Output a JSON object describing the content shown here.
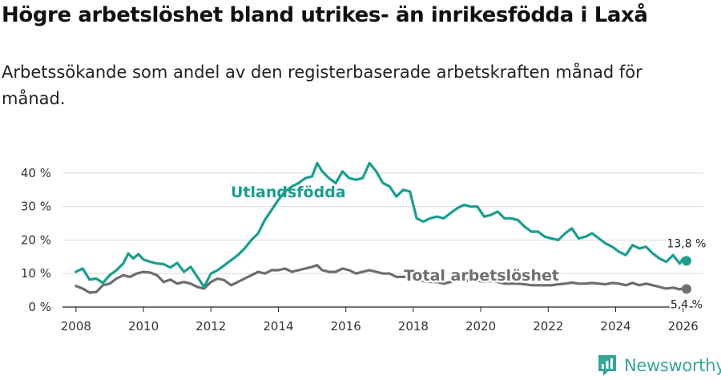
{
  "chart_data": {
    "type": "line",
    "title": "Högre arbetslöshet bland utrikes- än inrikesfödda i Laxå",
    "subtitle": "Arbetssökande som andel av den registerbaserade arbetskraften månad för månad.",
    "xlabel": "",
    "ylabel": "",
    "xlim": [
      2007.6,
      2026.6
    ],
    "ylim": [
      0,
      45
    ],
    "x_ticks": [
      2008,
      2010,
      2012,
      2014,
      2016,
      2018,
      2020,
      2022,
      2024,
      2026
    ],
    "y_ticks": [
      0,
      10,
      20,
      30,
      40
    ],
    "y_tick_labels": [
      "0 %",
      "10 %",
      "20 %",
      "30 %",
      "40 %"
    ],
    "grid": true,
    "series": [
      {
        "name": "Utlandsfödda",
        "color": "#1a9e8f",
        "end_label": "13,8 %",
        "points": [
          [
            2008.0,
            10.5
          ],
          [
            2008.2,
            11.5
          ],
          [
            2008.4,
            8.2
          ],
          [
            2008.6,
            8.5
          ],
          [
            2008.8,
            7.2
          ],
          [
            2009.0,
            9.5
          ],
          [
            2009.2,
            11.0
          ],
          [
            2009.4,
            13.0
          ],
          [
            2009.55,
            16.0
          ],
          [
            2009.7,
            14.5
          ],
          [
            2009.85,
            15.8
          ],
          [
            2010.0,
            14.2
          ],
          [
            2010.2,
            13.5
          ],
          [
            2010.4,
            13.0
          ],
          [
            2010.6,
            12.8
          ],
          [
            2010.8,
            11.8
          ],
          [
            2011.0,
            13.2
          ],
          [
            2011.2,
            10.5
          ],
          [
            2011.4,
            12.0
          ],
          [
            2011.6,
            9.0
          ],
          [
            2011.8,
            6.0
          ],
          [
            2012.0,
            10.0
          ],
          [
            2012.2,
            11.0
          ],
          [
            2012.4,
            12.5
          ],
          [
            2012.6,
            14.0
          ],
          [
            2012.8,
            15.5
          ],
          [
            2013.0,
            17.5
          ],
          [
            2013.2,
            20.0
          ],
          [
            2013.4,
            22.0
          ],
          [
            2013.6,
            26.0
          ],
          [
            2013.8,
            29.0
          ],
          [
            2014.0,
            32.0
          ],
          [
            2014.2,
            34.5
          ],
          [
            2014.4,
            36.0
          ],
          [
            2014.6,
            37.0
          ],
          [
            2014.8,
            38.5
          ],
          [
            2015.0,
            39.0
          ],
          [
            2015.15,
            43.0
          ],
          [
            2015.3,
            40.5
          ],
          [
            2015.5,
            38.5
          ],
          [
            2015.7,
            37.0
          ],
          [
            2015.9,
            40.5
          ],
          [
            2016.1,
            38.5
          ],
          [
            2016.3,
            38.0
          ],
          [
            2016.5,
            38.5
          ],
          [
            2016.7,
            43.0
          ],
          [
            2016.9,
            40.5
          ],
          [
            2017.1,
            37.0
          ],
          [
            2017.3,
            36.0
          ],
          [
            2017.5,
            33.0
          ],
          [
            2017.7,
            35.0
          ],
          [
            2017.9,
            34.5
          ],
          [
            2018.1,
            26.5
          ],
          [
            2018.3,
            25.5
          ],
          [
            2018.5,
            26.5
          ],
          [
            2018.7,
            27.0
          ],
          [
            2018.9,
            26.5
          ],
          [
            2019.1,
            28.0
          ],
          [
            2019.3,
            29.5
          ],
          [
            2019.5,
            30.5
          ],
          [
            2019.7,
            30.0
          ],
          [
            2019.9,
            30.0
          ],
          [
            2020.1,
            27.0
          ],
          [
            2020.3,
            27.5
          ],
          [
            2020.5,
            28.5
          ],
          [
            2020.7,
            26.5
          ],
          [
            2020.9,
            26.5
          ],
          [
            2021.1,
            26.0
          ],
          [
            2021.3,
            24.0
          ],
          [
            2021.5,
            22.5
          ],
          [
            2021.7,
            22.5
          ],
          [
            2021.9,
            21.0
          ],
          [
            2022.1,
            20.5
          ],
          [
            2022.3,
            20.0
          ],
          [
            2022.5,
            22.0
          ],
          [
            2022.7,
            23.5
          ],
          [
            2022.9,
            20.5
          ],
          [
            2023.1,
            21.0
          ],
          [
            2023.3,
            22.0
          ],
          [
            2023.5,
            20.5
          ],
          [
            2023.7,
            19.0
          ],
          [
            2023.9,
            18.0
          ],
          [
            2024.1,
            16.5
          ],
          [
            2024.3,
            15.5
          ],
          [
            2024.5,
            18.5
          ],
          [
            2024.7,
            17.5
          ],
          [
            2024.9,
            18.0
          ],
          [
            2025.1,
            16.0
          ],
          [
            2025.3,
            14.5
          ],
          [
            2025.5,
            13.5
          ],
          [
            2025.7,
            15.5
          ],
          [
            2025.9,
            13.0
          ],
          [
            2026.0,
            14.5
          ],
          [
            2026.1,
            13.8
          ]
        ]
      },
      {
        "name": "Total arbetslöshet",
        "color": "#6e6e70",
        "end_label": "5,4 %",
        "points": [
          [
            2008.0,
            6.3
          ],
          [
            2008.2,
            5.5
          ],
          [
            2008.4,
            4.3
          ],
          [
            2008.6,
            4.5
          ],
          [
            2008.8,
            6.5
          ],
          [
            2009.0,
            7.0
          ],
          [
            2009.2,
            8.5
          ],
          [
            2009.4,
            9.5
          ],
          [
            2009.6,
            9.0
          ],
          [
            2009.8,
            10.0
          ],
          [
            2010.0,
            10.5
          ],
          [
            2010.2,
            10.3
          ],
          [
            2010.4,
            9.5
          ],
          [
            2010.6,
            7.5
          ],
          [
            2010.8,
            8.2
          ],
          [
            2011.0,
            7.0
          ],
          [
            2011.2,
            7.5
          ],
          [
            2011.4,
            7.0
          ],
          [
            2011.6,
            6.0
          ],
          [
            2011.8,
            5.5
          ],
          [
            2012.0,
            7.5
          ],
          [
            2012.2,
            8.5
          ],
          [
            2012.4,
            8.0
          ],
          [
            2012.6,
            6.5
          ],
          [
            2012.8,
            7.5
          ],
          [
            2013.0,
            8.5
          ],
          [
            2013.2,
            9.5
          ],
          [
            2013.4,
            10.5
          ],
          [
            2013.6,
            10.0
          ],
          [
            2013.8,
            11.0
          ],
          [
            2014.0,
            11.0
          ],
          [
            2014.2,
            11.5
          ],
          [
            2014.4,
            10.5
          ],
          [
            2014.6,
            11.0
          ],
          [
            2014.8,
            11.5
          ],
          [
            2015.0,
            12.0
          ],
          [
            2015.15,
            12.5
          ],
          [
            2015.3,
            11.0
          ],
          [
            2015.5,
            10.5
          ],
          [
            2015.7,
            10.5
          ],
          [
            2015.9,
            11.5
          ],
          [
            2016.1,
            11.0
          ],
          [
            2016.3,
            10.0
          ],
          [
            2016.5,
            10.5
          ],
          [
            2016.7,
            11.0
          ],
          [
            2016.9,
            10.5
          ],
          [
            2017.1,
            10.0
          ],
          [
            2017.3,
            10.0
          ],
          [
            2017.5,
            9.0
          ],
          [
            2017.7,
            9.0
          ],
          [
            2017.9,
            9.0
          ],
          [
            2018.1,
            8.0
          ],
          [
            2018.3,
            7.8
          ],
          [
            2018.5,
            7.5
          ],
          [
            2018.7,
            7.5
          ],
          [
            2018.9,
            7.0
          ],
          [
            2019.1,
            7.5
          ],
          [
            2019.3,
            7.8
          ],
          [
            2019.5,
            8.0
          ],
          [
            2019.7,
            7.8
          ],
          [
            2019.9,
            8.0
          ],
          [
            2020.1,
            7.5
          ],
          [
            2020.3,
            7.8
          ],
          [
            2020.5,
            7.5
          ],
          [
            2020.7,
            7.0
          ],
          [
            2020.9,
            7.0
          ],
          [
            2021.1,
            7.0
          ],
          [
            2021.3,
            6.8
          ],
          [
            2021.5,
            6.5
          ],
          [
            2021.7,
            6.5
          ],
          [
            2021.9,
            6.5
          ],
          [
            2022.1,
            6.5
          ],
          [
            2022.3,
            6.8
          ],
          [
            2022.5,
            7.0
          ],
          [
            2022.7,
            7.3
          ],
          [
            2022.9,
            7.0
          ],
          [
            2023.1,
            7.0
          ],
          [
            2023.3,
            7.2
          ],
          [
            2023.5,
            7.0
          ],
          [
            2023.7,
            6.8
          ],
          [
            2023.9,
            7.2
          ],
          [
            2024.1,
            7.0
          ],
          [
            2024.3,
            6.5
          ],
          [
            2024.5,
            7.2
          ],
          [
            2024.7,
            6.5
          ],
          [
            2024.9,
            7.0
          ],
          [
            2025.1,
            6.5
          ],
          [
            2025.3,
            6.0
          ],
          [
            2025.5,
            5.5
          ],
          [
            2025.7,
            5.8
          ],
          [
            2025.9,
            5.3
          ],
          [
            2026.0,
            5.6
          ],
          [
            2026.1,
            5.4
          ]
        ]
      }
    ]
  },
  "branding": {
    "name": "Newsworthy",
    "color": "#37a597"
  }
}
